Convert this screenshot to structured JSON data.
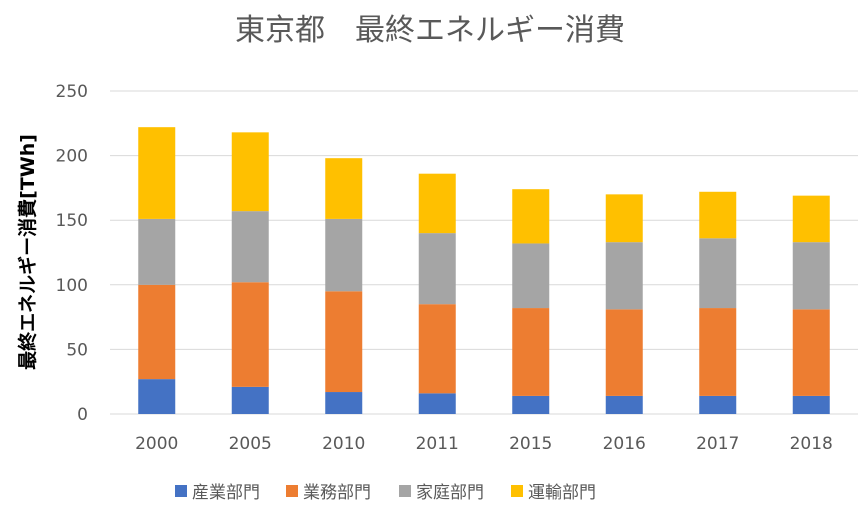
{
  "chart_data": {
    "type": "bar",
    "stacked": true,
    "title": "東京都　最終エネルギー消費",
    "xlabel": "",
    "ylabel": "最終エネルギー消費[TWh]",
    "ylim": [
      0,
      250
    ],
    "yticks": [
      0,
      50,
      100,
      150,
      200,
      250
    ],
    "grid": true,
    "legend_position": "bottom",
    "categories": [
      "2000",
      "2005",
      "2010",
      "2011",
      "2015",
      "2016",
      "2017",
      "2018"
    ],
    "series": [
      {
        "name": "産業部門",
        "color": "#4472C4",
        "values": [
          27,
          21,
          17,
          16,
          14,
          14,
          14,
          14
        ]
      },
      {
        "name": "業務部門",
        "color": "#ED7D31",
        "values": [
          73,
          81,
          78,
          69,
          68,
          67,
          68,
          67
        ]
      },
      {
        "name": "家庭部門",
        "color": "#A5A5A5",
        "values": [
          51,
          55,
          56,
          55,
          50,
          52,
          54,
          52
        ]
      },
      {
        "name": "運輸部門",
        "color": "#FFC000",
        "values": [
          71,
          61,
          47,
          46,
          42,
          37,
          36,
          36
        ]
      }
    ]
  }
}
